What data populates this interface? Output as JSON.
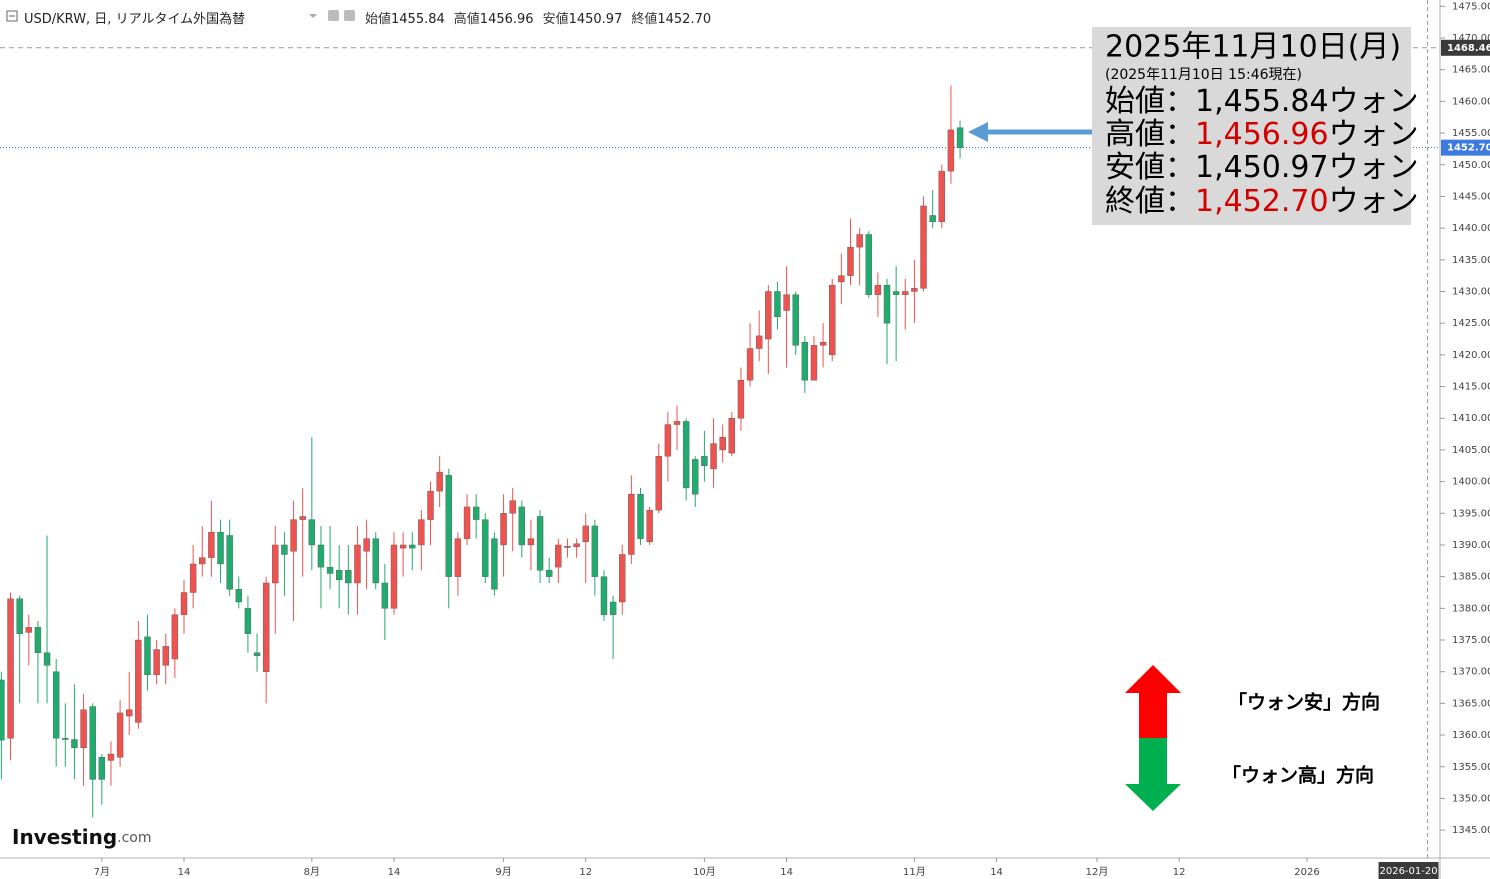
{
  "chart_data": {
    "type": "candlestick",
    "title": "USD/KRW, 日, リアルタイム外国為替",
    "header_ohlc": [
      {
        "label": "始値",
        "value": 1455.84
      },
      {
        "label": "高値",
        "value": 1456.96
      },
      {
        "label": "安値",
        "value": 1450.97
      },
      {
        "label": "終値",
        "value": {
          "value": 1452.7,
          "label": "1452.70"
        }
      }
    ],
    "up_color": "#ef5350",
    "down_color": "#22ab6e",
    "categories": [
      null,
      null,
      null,
      null,
      null,
      null,
      null,
      null,
      null,
      null,
      null,
      "7月",
      null,
      null,
      null,
      null,
      null,
      null,
      null,
      null,
      "14",
      null,
      null,
      null,
      null,
      null,
      null,
      null,
      null,
      null,
      null,
      null,
      null,
      null,
      "8月",
      null,
      null,
      null,
      null,
      null,
      null,
      null,
      null,
      "14",
      null,
      null,
      null,
      null,
      null,
      null,
      null,
      null,
      null,
      null,
      null,
      "9月",
      null,
      null,
      null,
      null,
      null,
      null,
      null,
      null,
      "12",
      null,
      null,
      null,
      null,
      null,
      null,
      null,
      null,
      null,
      null,
      null,
      null,
      "10月",
      null,
      null,
      null,
      null,
      null,
      null,
      null,
      null,
      "14",
      null,
      null,
      null,
      null,
      null,
      null,
      null,
      null,
      null,
      null,
      null,
      null,
      null,
      "11月",
      null,
      null,
      null,
      null,
      null,
      null,
      null,
      null,
      "14",
      null,
      null,
      null,
      null,
      null,
      null,
      null,
      null,
      null,
      null,
      "12月",
      null,
      null,
      null,
      null,
      null,
      null,
      null,
      null,
      "12",
      null,
      null,
      null,
      null,
      null,
      null,
      null,
      null,
      null,
      null,
      null,
      null,
      null,
      "2026",
      null,
      null,
      null,
      null,
      null,
      null,
      null,
      null,
      null,
      null,
      null,
      "2026-01-20"
    ],
    "open": [
      1368.7,
      1359.5,
      1381.5,
      1376.2,
      1377,
      1373,
      1370,
      1359.5,
      1359.3,
      1358,
      1364.5,
      1356.5,
      1356,
      1356.5,
      1363,
      1362,
      1375.5,
      1369.5,
      1371,
      1372,
      1379,
      1382.5,
      1387,
      1388,
      1392,
      1391.5,
      1383,
      1380,
      1373,
      1370,
      1384,
      1390,
      1389,
      1394,
      1394,
      1390,
      1386.5,
      1386,
      1386,
      1384,
      1389,
      1391,
      1384,
      1380,
      1389.5,
      1390,
      1390,
      1394,
      1398.5,
      1401,
      1385,
      1391,
      1396,
      1394,
      1391,
      1390,
      1395,
      1396,
      1390,
      1394.5,
      1386,
      1386.5,
      1389.6,
      1389.7,
      1390.5,
      1393,
      1385,
      1381,
      1381,
      1388.5,
      1398,
      1390.5,
      1395.5,
      1404,
      1409,
      1409.5,
      1403.5,
      1404,
      1402,
      1405,
      1404.5,
      1410,
      1416,
      1421,
      1422.5,
      1430,
      1427,
      1429.5,
      1422,
      1416,
      1421.5,
      1420,
      1431.5,
      1432.5,
      1437,
      1439,
      1429.5,
      1431,
      1430,
      1429.5,
      1430,
      1430.5,
      1442,
      1441,
      1449,
      1455.84,
      null,
      null,
      null,
      null,
      null,
      null,
      null,
      null,
      null,
      null,
      null,
      null,
      null,
      null,
      null,
      null,
      null,
      null,
      null,
      null,
      null,
      null,
      null,
      null,
      null,
      null,
      null,
      null,
      null,
      null,
      null,
      null,
      null,
      null,
      null,
      null,
      null,
      null,
      null,
      null,
      null,
      null,
      null,
      null,
      null,
      null,
      null,
      null,
      null,
      null
    ],
    "high": [
      1370,
      1382.5,
      1382,
      1379,
      1378,
      1391.5,
      1372,
      1365,
      1368,
      1366.5,
      1365,
      1357,
      1359,
      1365.5,
      1370,
      1378,
      1379,
      1375,
      1376,
      1380,
      1384.5,
      1390,
      1393,
      1397,
      1394,
      1394,
      1385,
      1382,
      1376,
      1385,
      1393,
      1392,
      1397,
      1399,
      1407,
      1393,
      1393,
      1390,
      1390,
      1393,
      1394,
      1392,
      1387,
      1392,
      1392,
      1392,
      1395.5,
      1400,
      1404,
      1402,
      1392,
      1398,
      1398,
      1395,
      1392,
      1398,
      1399,
      1397,
      1394,
      1395.5,
      1388,
      1391,
      1391,
      1391,
      1395,
      1394,
      1386,
      1382,
      1390,
      1401,
      1399,
      1396,
      1406,
      1411,
      1412,
      1410,
      1404,
      1408,
      1410,
      1409,
      1411,
      1418,
      1425,
      1427,
      1431,
      1431.5,
      1434,
      1430,
      1423,
      1423,
      1425,
      1432,
      1436,
      1441.5,
      1440,
      1439.5,
      1433,
      1432,
      1434,
      1432,
      1435,
      1445,
      1446,
      1450,
      1462.5,
      1456.96,
      null,
      null,
      null,
      null,
      null,
      null,
      null,
      null,
      null,
      null,
      null,
      null,
      null,
      null,
      null,
      null,
      null,
      null,
      null,
      null,
      null,
      null,
      null,
      null,
      null,
      null,
      null,
      null,
      null,
      null,
      null,
      null,
      null,
      null,
      null,
      null,
      null,
      null,
      null,
      null,
      null,
      null,
      null,
      null,
      null,
      null,
      null,
      null,
      null,
      null
    ],
    "low": [
      1353,
      1356,
      1365,
      1371,
      1365,
      1365,
      1355,
      1355,
      1353,
      1352,
      1347,
      1349,
      1352,
      1355,
      1360,
      1361,
      1367,
      1368,
      1368,
      1369,
      1376,
      1380,
      1385,
      1385,
      1384,
      1382,
      1380,
      1373,
      1370,
      1365,
      1376,
      1382,
      1378,
      1385,
      1386,
      1380,
      1383,
      1380,
      1379,
      1379,
      1383,
      1383,
      1375,
      1379,
      1385,
      1386,
      1386,
      1390,
      1396,
      1380,
      1382,
      1390,
      1391,
      1384,
      1382,
      1385,
      1389,
      1388,
      1386,
      1384,
      1384,
      1384,
      1388,
      1388,
      1384,
      1382,
      1378,
      1372,
      1379,
      1387,
      1390,
      1390,
      1395,
      1400,
      1405,
      1397,
      1396,
      1400,
      1399,
      1403,
      1404,
      1408,
      1415,
      1419,
      1417,
      1424,
      1418,
      1420,
      1414,
      1416,
      1418,
      1419,
      1428,
      1431,
      1431,
      1429,
      1426,
      1418.5,
      1419,
      1424,
      1425,
      1430,
      1440,
      1440,
      1447,
      1450.97,
      null,
      null,
      null,
      null,
      null,
      null,
      null,
      null,
      null,
      null,
      null,
      null,
      null,
      null,
      null,
      null,
      null,
      null,
      null,
      null,
      null,
      null,
      null,
      null,
      null,
      null,
      null,
      null,
      null,
      null,
      null,
      null,
      null,
      null,
      null,
      null,
      null,
      null,
      null,
      null,
      null,
      null,
      null,
      null,
      null,
      null,
      null,
      null,
      null,
      null
    ],
    "close": [
      1359.2,
      1381.5,
      1376,
      1377,
      1373,
      1371,
      1359.5,
      1359.3,
      1358,
      1364,
      1353,
      1353,
      1357,
      1363.5,
      1364,
      1375,
      1369.5,
      1373.5,
      1374,
      1379,
      1382.5,
      1387,
      1388,
      1392,
      1387,
      1383,
      1381,
      1376,
      1372.5,
      1384,
      1390,
      1388.5,
      1394,
      1394.5,
      1390,
      1386.5,
      1385.5,
      1384.5,
      1384,
      1390,
      1391,
      1384,
      1380,
      1390,
      1390,
      1389.5,
      1394,
      1398.5,
      1401.5,
      1385,
      1391,
      1396,
      1394,
      1385,
      1383,
      1395,
      1397,
      1390,
      1391,
      1386,
      1385,
      1390,
      1389.8,
      1390.2,
      1393,
      1385,
      1379,
      1379,
      1388.5,
      1398,
      1391,
      1395.5,
      1404,
      1409,
      1409.5,
      1399,
      1398,
      1402.5,
      1406,
      1407,
      1410,
      1416,
      1421,
      1423,
      1430,
      1426,
      1429.5,
      1421.5,
      1416,
      1421.5,
      1422,
      1431,
      1432.5,
      1437,
      1439,
      1429.5,
      1431,
      1425,
      1429.5,
      1430,
      1430.5,
      1443.5,
      1441,
      1449,
      1455.5,
      1452.7,
      null,
      null,
      null,
      null,
      null,
      null,
      null,
      null,
      null,
      null,
      null,
      null,
      null,
      null,
      null,
      null,
      null,
      null,
      null,
      null,
      null,
      null,
      null,
      null,
      null,
      null,
      null,
      null,
      null,
      null,
      null,
      null,
      null,
      null,
      null,
      null,
      null,
      null,
      null,
      null,
      null,
      null,
      null,
      null,
      null,
      null,
      null,
      null,
      null,
      null
    ],
    "ylim": [
      1340.6,
      1476
    ],
    "yticks": [
      {
        "value": 1345,
        "label": "1345.00"
      },
      {
        "value": 1350,
        "label": "1350.00"
      },
      {
        "value": 1355,
        "label": "1355.00"
      },
      {
        "value": 1360,
        "label": "1360.00"
      },
      {
        "value": 1365,
        "label": "1365.00"
      },
      {
        "value": 1370,
        "label": "1370.00"
      },
      {
        "value": 1375,
        "label": "1375.00"
      },
      {
        "value": 1380,
        "label": "1380.00"
      },
      {
        "value": 1385,
        "label": "1385.00"
      },
      {
        "value": 1390,
        "label": "1390.00"
      },
      {
        "value": 1395,
        "label": "1395.00"
      },
      {
        "value": 1400,
        "label": "1400.00"
      },
      {
        "value": 1405,
        "label": "1405.00"
      },
      {
        "value": 1410,
        "label": "1410.00"
      },
      {
        "value": 1415,
        "label": "1415.00"
      },
      {
        "value": 1420,
        "label": "1420.00"
      },
      {
        "value": 1425,
        "label": "1425.00"
      },
      {
        "value": 1430,
        "label": "1430.00"
      },
      {
        "value": 1435,
        "label": "1435.00"
      },
      {
        "value": 1440,
        "label": "1440.00"
      },
      {
        "value": 1445,
        "label": "1445.00"
      },
      {
        "value": 1450,
        "label": "1450.00"
      },
      {
        "value": 1455,
        "label": "1455.00"
      },
      {
        "value": 1460,
        "label": "1460.00"
      },
      {
        "value": 1465,
        "label": "1465.00"
      },
      {
        "value": 1470,
        "label": "1470.00"
      },
      {
        "value": 1475,
        "label": "1475.00"
      }
    ],
    "crosshair_price": 1468.46,
    "last_price": {
      "value": 1452.7,
      "label": "1452.70"
    },
    "info_box": {
      "title": "2025年11月10日(月)",
      "subtitle": "(2025年11月10日 15:46現在)",
      "separator": "：",
      "unit": "ウォン",
      "rows": [
        {
          "label": "始値",
          "value": {
            "value": 1455.84,
            "label": "1,455.84"
          },
          "color": "#000000"
        },
        {
          "label": "高値",
          "value": {
            "value": 1456.96,
            "label": "1,456.96"
          },
          "color": "#d40000"
        },
        {
          "label": "安値",
          "value": {
            "value": 1450.97,
            "label": "1,450.97"
          },
          "color": "#000000"
        },
        {
          "label": "終値",
          "value": {
            "value": 1452.7,
            "label": "1,452.70"
          },
          "color": "#d40000"
        }
      ]
    },
    "annotations": [
      "「ウォン安」方向",
      "「ウォン高」方向"
    ],
    "logo": {
      "brand": "Investing",
      "suffix": ".com"
    }
  }
}
